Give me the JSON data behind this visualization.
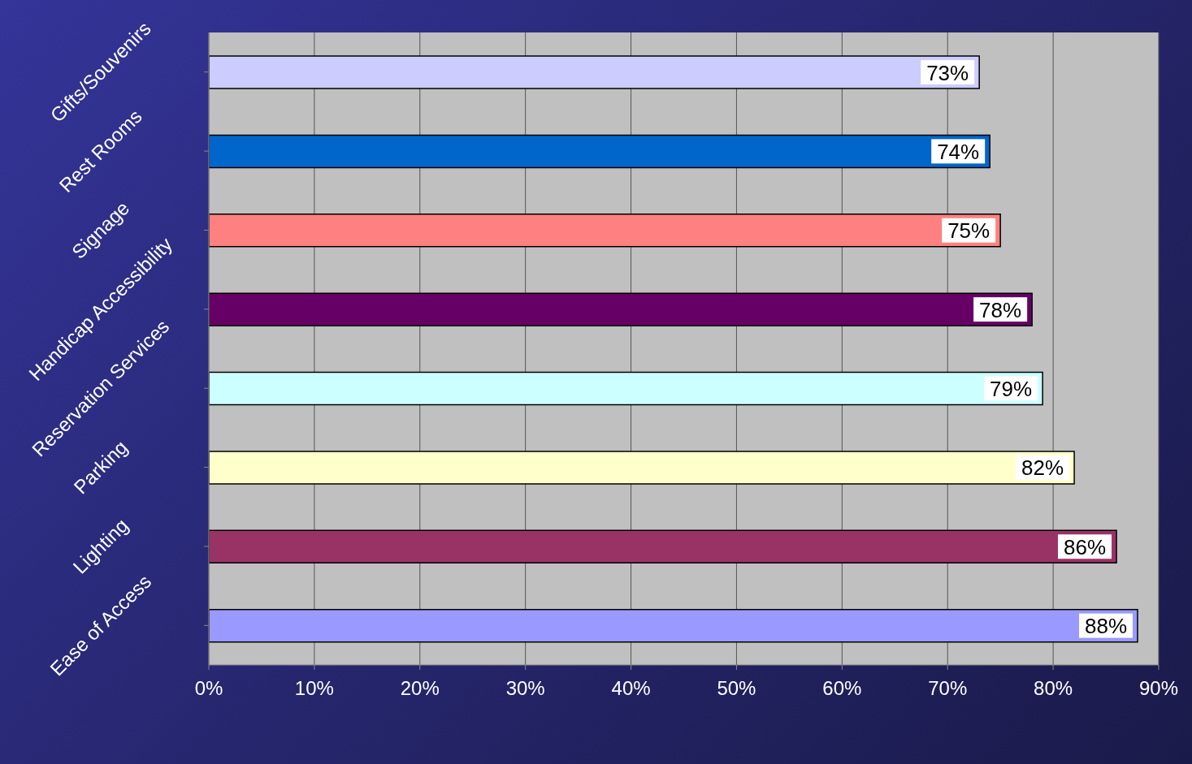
{
  "chart_data": {
    "type": "bar",
    "orientation": "horizontal",
    "categories": [
      "Gifts/Souvenirs",
      "Rest Rooms",
      "Signage",
      "Handicap Accessibility",
      "Reservation Services",
      "Parking",
      "Lighting",
      "Ease of Access"
    ],
    "values": [
      73,
      74,
      75,
      78,
      79,
      82,
      86,
      88
    ],
    "colors": [
      "#ccccff",
      "#0066cc",
      "#ff8080",
      "#660066",
      "#ccffff",
      "#ffffcc",
      "#993366",
      "#9999ff"
    ],
    "value_labels": [
      "73%",
      "74%",
      "75%",
      "78%",
      "79%",
      "82%",
      "86%",
      "88%"
    ],
    "xlim": [
      0,
      90
    ],
    "xticks": [
      {
        "value": 0,
        "label": "0%"
      },
      {
        "value": 10,
        "label": "10%"
      },
      {
        "value": 20,
        "label": "20%"
      },
      {
        "value": 30,
        "label": "30%"
      },
      {
        "value": 40,
        "label": "40%"
      },
      {
        "value": 50,
        "label": "50%"
      },
      {
        "value": 60,
        "label": "60%"
      },
      {
        "value": 70,
        "label": "70%"
      },
      {
        "value": 80,
        "label": "80%"
      },
      {
        "value": 90,
        "label": "90%"
      }
    ],
    "grid": "x",
    "legend": false
  }
}
